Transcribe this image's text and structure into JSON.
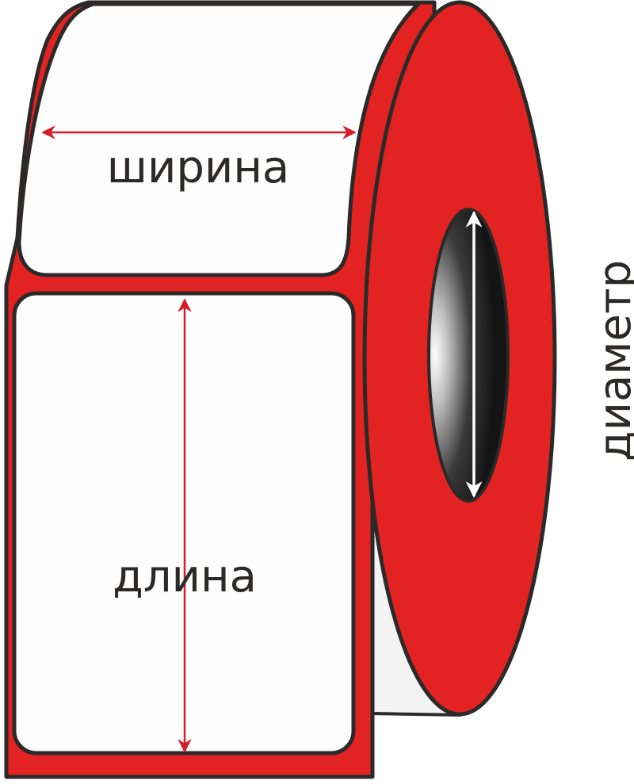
{
  "labels": {
    "width": "ширина",
    "length": "длина",
    "diameter": "диаметр"
  },
  "colors": {
    "roll_red": "#e32322",
    "outline": "#2b2a29",
    "label_white": "#fdfdfd",
    "side_white": "#f3f3f3",
    "arrow_red": "#d11f2a",
    "arrow_white": "#ffffff",
    "text": "#2b2a29"
  },
  "icons": {
    "width_arrow": "double-arrow-horizontal",
    "length_arrow": "double-arrow-vertical",
    "core_arrow": "double-arrow-vertical"
  }
}
